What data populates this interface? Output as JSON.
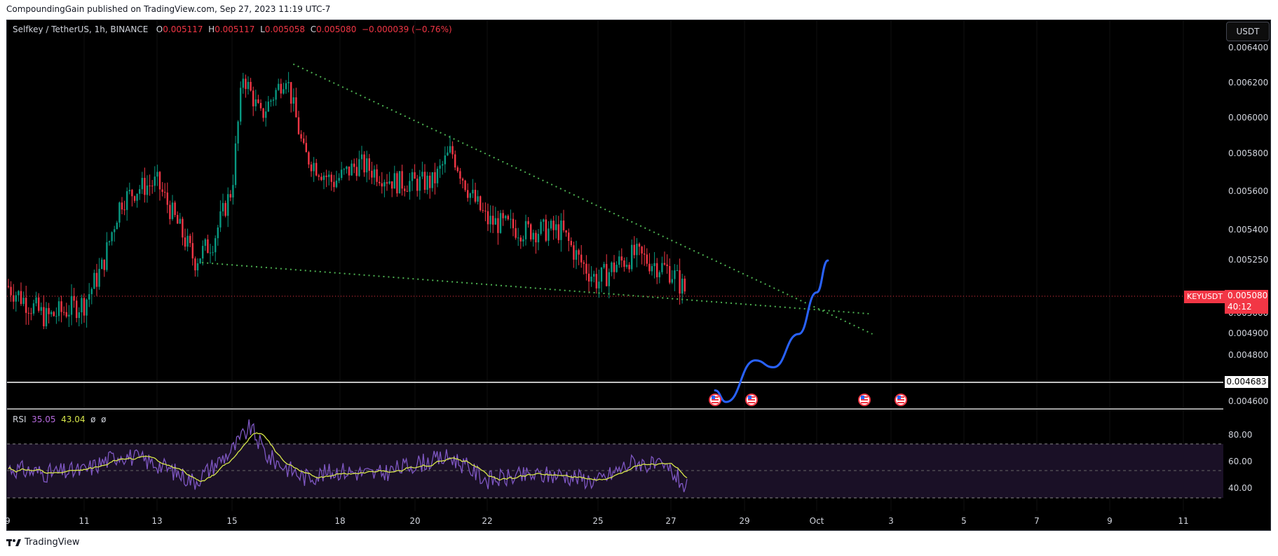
{
  "header": {
    "published_by": "CompoundingGain published on TradingView.com, Sep 27, 2023 11:19 UTC-7"
  },
  "symbol_legend": {
    "name": "Selfkey / TetherUS, 1h, BINANCE",
    "open_label": "O",
    "open": "0.005117",
    "high_label": "H",
    "high": "0.005117",
    "low_label": "L",
    "low": "0.005058",
    "close_label": "C",
    "close": "0.005080",
    "change": "−0.000039 (−0.76%)"
  },
  "currency": "USDT",
  "price_axis": [
    "0.006400",
    "0.006200",
    "0.006000",
    "0.005800",
    "0.005600",
    "0.005400",
    "0.005250",
    "0.005000",
    "0.004900",
    "0.004800",
    "0.004600"
  ],
  "current_price": {
    "symbol": "KEYUSDT",
    "price": "0.005080",
    "countdown": "40:12"
  },
  "support_level": "0.004683",
  "rsi": {
    "label": "RSI",
    "value": "35.05",
    "ma_value": "43.04",
    "extra1": "ø",
    "extra2": "ø",
    "axis": [
      "80.00",
      "60.00",
      "40.00"
    ]
  },
  "time_axis": [
    "9",
    "11",
    "13",
    "15",
    "18",
    "20",
    "22",
    "25",
    "27",
    "29",
    "Oct",
    "3",
    "5",
    "7",
    "9",
    "11"
  ],
  "footer": {
    "brand": "TradingView"
  },
  "colors": {
    "up": "#089981",
    "down": "#f23645",
    "trend": "#4caf50",
    "projection": "#2962ff",
    "rsi": "#7e57c2",
    "rsi_ma": "#d7e64a"
  },
  "chart_data": {
    "type": "candlestick",
    "symbol": "KEYUSDT",
    "interval": "1h",
    "ylim": [
      0.0046,
      0.0064
    ],
    "close_path_points": [
      [
        "Sep 9",
        0.00513
      ],
      [
        "Sep 10",
        0.00498
      ],
      [
        "Sep 11",
        0.00505
      ],
      [
        "Sep 11.5",
        0.00522
      ],
      [
        "Sep 12",
        0.00555
      ],
      [
        "Sep 12.5",
        0.00562
      ],
      [
        "Sep 13",
        0.00565
      ],
      [
        "Sep 14",
        0.00525
      ],
      [
        "Sep 14.5",
        0.00535
      ],
      [
        "Sep 15",
        0.00562
      ],
      [
        "Sep 15.3",
        0.00625
      ],
      [
        "Sep 15.8",
        0.00601
      ],
      [
        "Sep 16.5",
        0.00625
      ],
      [
        "Sep 17",
        0.0058
      ],
      [
        "Sep 17.8",
        0.00565
      ],
      [
        "Sep 18.5",
        0.00575
      ],
      [
        "Sep 19.5",
        0.00565
      ],
      [
        "Sep 20.5",
        0.00565
      ],
      [
        "Sep 21",
        0.00582
      ],
      [
        "Sep 21.5",
        0.0056
      ],
      [
        "Sep 22",
        0.00545
      ],
      [
        "Sep 23",
        0.0054
      ],
      [
        "Sep 24",
        0.0054
      ],
      [
        "Sep 24.5",
        0.00525
      ],
      [
        "Sep 25",
        0.00515
      ],
      [
        "Sep 25.5",
        0.00523
      ],
      [
        "Sep 26",
        0.00528
      ],
      [
        "Sep 27",
        0.0052
      ],
      [
        "Sep 27.5",
        0.00508
      ]
    ],
    "trendlines": [
      {
        "name": "upper",
        "from": [
          "Sep 16.7",
          0.00631
        ],
        "to": [
          "Oct 2.5",
          0.0049
        ]
      },
      {
        "name": "lower",
        "from": [
          "Sep 14.2",
          0.00524
        ],
        "to": [
          "Oct 2.4",
          0.005
        ]
      }
    ],
    "projection_points": [
      [
        "Sep 28.2",
        0.00465
      ],
      [
        "Sep 28.5",
        0.00457
      ],
      [
        "Sep 29.3",
        0.00478
      ],
      [
        "Sep 29.8",
        0.00475
      ],
      [
        "Sep 30.5",
        0.0049
      ],
      [
        "Oct 1",
        0.0051
      ],
      [
        "Oct 1.3",
        0.00525
      ]
    ],
    "rsi_series_points": [
      [
        "Sep 9",
        52
      ],
      [
        "Sep 10",
        48
      ],
      [
        "Sep 11",
        50
      ],
      [
        "Sep 12",
        62
      ],
      [
        "Sep 13",
        55
      ],
      [
        "Sep 14",
        42
      ],
      [
        "Sep 15",
        65
      ],
      [
        "Sep 15.5",
        82
      ],
      [
        "Sep 16",
        60
      ],
      [
        "Sep 17",
        45
      ],
      [
        "Sep 18",
        50
      ],
      [
        "Sep 19",
        47
      ],
      [
        "Sep 20",
        55
      ],
      [
        "Sep 21",
        60
      ],
      [
        "Sep 22",
        43
      ],
      [
        "Sep 23",
        46
      ],
      [
        "Sep 24",
        47
      ],
      [
        "Sep 25",
        42
      ],
      [
        "Sep 26",
        57
      ],
      [
        "Sep 27",
        50
      ],
      [
        "Sep 27.5",
        35
      ]
    ]
  }
}
